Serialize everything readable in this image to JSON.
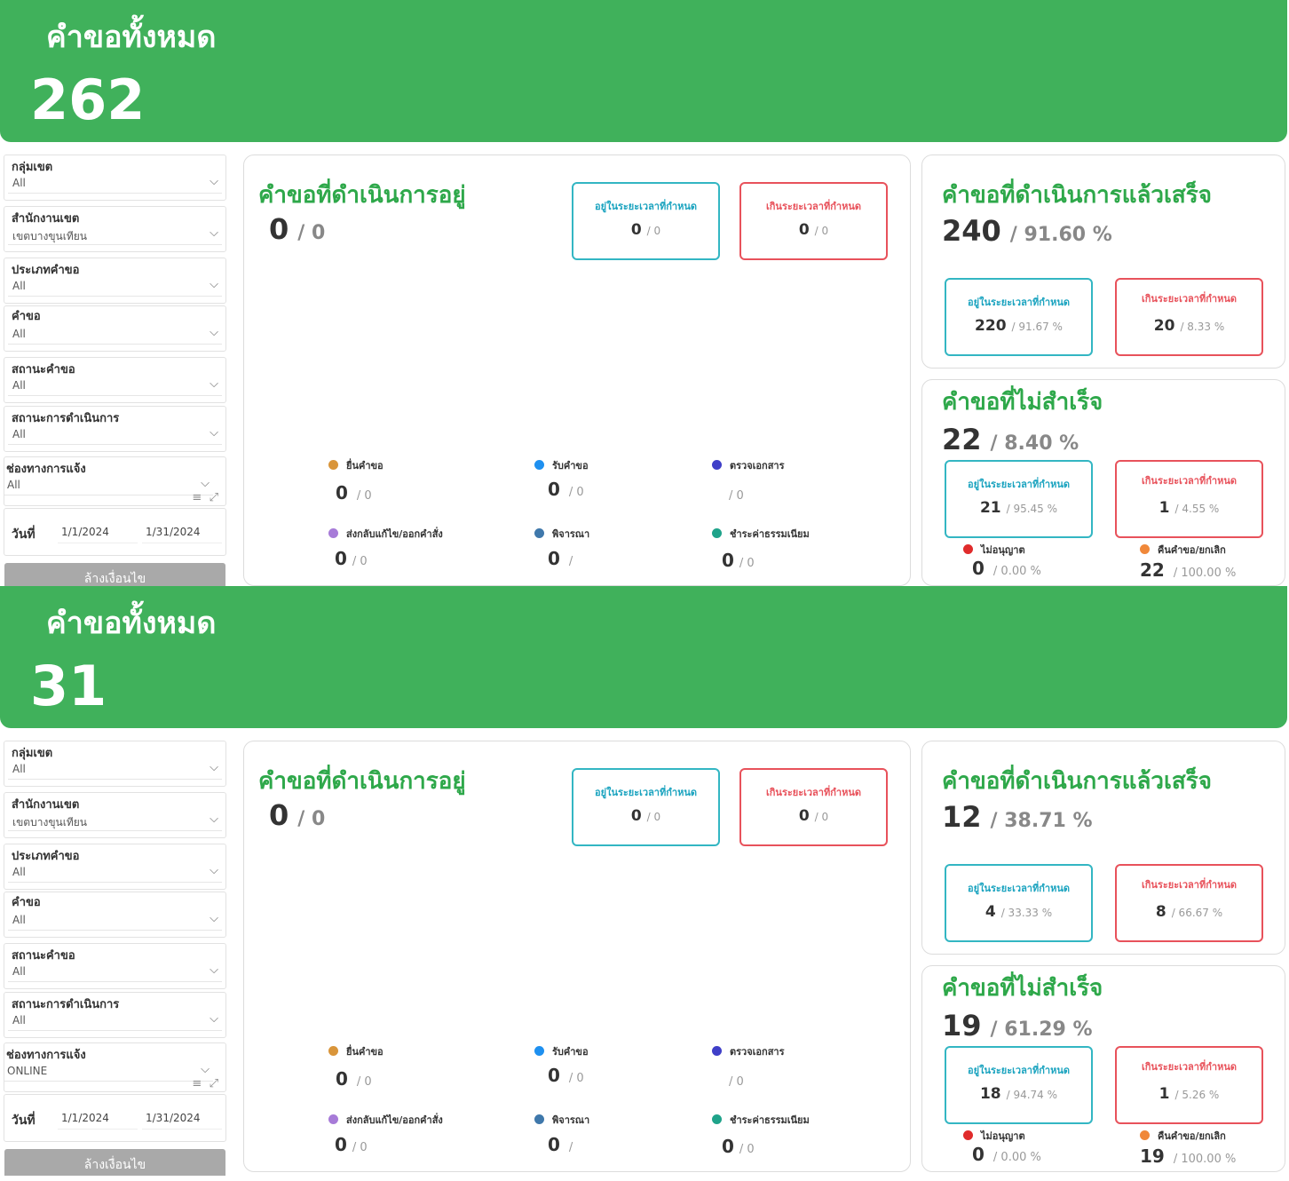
{
  "colors": {
    "brand_green": "#40b15b",
    "title_green": "#2ea84a",
    "in_time": "#33b6c3",
    "overdue": "#e8525b",
    "clear_button": "#a9a9a9"
  },
  "icons": {
    "dropdown": "chevron-down-icon",
    "filter": "filter-icon",
    "expand": "expand-icon"
  },
  "common": {
    "banner_title": "คำขอทั้งหมด",
    "filters": {
      "zone_group": "กลุ่มเขต",
      "district_office": "สำนักงานเขต",
      "request_type": "ประเภทคำขอ",
      "request": "คำขอ",
      "request_status": "สถานะคำขอ",
      "process_status": "สถานะการดำเนินการ",
      "channel": "ช่องทางการแจ้ง"
    },
    "date_label": "วันที่",
    "date_from": "1/1/2024",
    "date_to": "1/31/2024",
    "clear_label": "ล้างเงื่อนไข",
    "in_progress_title": "คำขอที่ดำเนินการอยู่",
    "completed_title": "คำขอที่ดำเนินการแล้วเสร็จ",
    "failed_title": "คำขอที่ไม่สำเร็จ",
    "within_time": "อยู่ในระยะเวลาที่กำหนด",
    "over_time": "เกินระยะเวลาที่กำหนด",
    "stages": {
      "submit": "ยื่นคำขอ",
      "receive": "รับคำขอ",
      "check_docs": "ตรวจเอกสาร",
      "return_fix": "ส่งกลับแก้ไข/ออกคำสั่ง",
      "consider": "พิจารณา",
      "pay_fee": "ชำระค่าธรรมเนียม"
    },
    "not_approved": "ไม่อนุญาต",
    "returned_cancelled": "คืนคำขอ/ยกเลิก"
  },
  "panes": [
    {
      "total": "262",
      "filter_values": {
        "zone_group": "All",
        "district_office": "เขตบางขุนเทียน",
        "request_type": "All",
        "request": "All",
        "request_status": "All",
        "process_status": "All",
        "channel": "All"
      },
      "in_progress": {
        "count": "0",
        "sub": "/ 0",
        "within": {
          "count": "0",
          "sub": "/ 0"
        },
        "over": {
          "count": "0",
          "sub": "/ 0"
        },
        "stages": {
          "submit": {
            "count": "0",
            "sub": "/ 0"
          },
          "receive": {
            "count": "0",
            "sub": "/ 0"
          },
          "check_docs": {
            "count": "",
            "sub": "/ 0"
          },
          "return_fix": {
            "count": "0",
            "sub": "/ 0"
          },
          "consider": {
            "count": "0",
            "sub": "/"
          },
          "pay_fee": {
            "count": "0",
            "sub": "/ 0"
          }
        }
      },
      "completed": {
        "count": "240",
        "sub": "/ 91.60 %",
        "within": {
          "count": "220",
          "sub": "/ 91.67 %"
        },
        "over": {
          "count": "20",
          "sub": "/ 8.33 %"
        }
      },
      "failed": {
        "count": "22",
        "sub": "/ 8.40 %",
        "within": {
          "count": "21",
          "sub": "/ 95.45 %"
        },
        "over": {
          "count": "1",
          "sub": "/ 4.55 %"
        },
        "not_approved": {
          "count": "0",
          "sub": "/ 0.00 %"
        },
        "returned_cancelled": {
          "count": "22",
          "sub": "/ 100.00 %"
        }
      }
    },
    {
      "total": "31",
      "filter_values": {
        "zone_group": "All",
        "district_office": "เขตบางขุนเทียน",
        "request_type": "All",
        "request": "All",
        "request_status": "All",
        "process_status": "All",
        "channel": "ONLINE"
      },
      "in_progress": {
        "count": "0",
        "sub": "/ 0",
        "within": {
          "count": "0",
          "sub": "/ 0"
        },
        "over": {
          "count": "0",
          "sub": "/ 0"
        },
        "stages": {
          "submit": {
            "count": "0",
            "sub": "/ 0"
          },
          "receive": {
            "count": "0",
            "sub": "/ 0"
          },
          "check_docs": {
            "count": "",
            "sub": "/ 0"
          },
          "return_fix": {
            "count": "0",
            "sub": "/ 0"
          },
          "consider": {
            "count": "0",
            "sub": "/"
          },
          "pay_fee": {
            "count": "0",
            "sub": "/ 0"
          }
        }
      },
      "completed": {
        "count": "12",
        "sub": "/ 38.71 %",
        "within": {
          "count": "4",
          "sub": "/ 33.33 %"
        },
        "over": {
          "count": "8",
          "sub": "/ 66.67 %"
        }
      },
      "failed": {
        "count": "19",
        "sub": "/ 61.29 %",
        "within": {
          "count": "18",
          "sub": "/ 94.74 %"
        },
        "over": {
          "count": "1",
          "sub": "/ 5.26 %"
        },
        "not_approved": {
          "count": "0",
          "sub": "/ 0.00 %"
        },
        "returned_cancelled": {
          "count": "19",
          "sub": "/ 100.00 %"
        }
      }
    }
  ]
}
